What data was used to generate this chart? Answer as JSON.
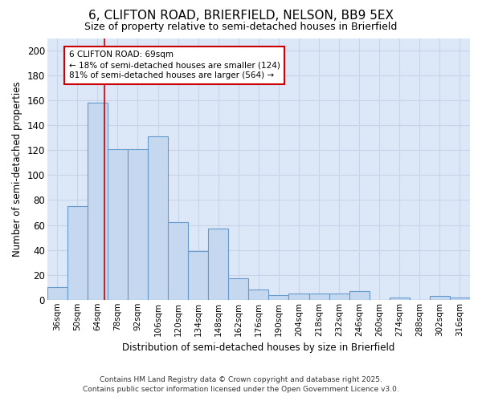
{
  "title1": "6, CLIFTON ROAD, BRIERFIELD, NELSON, BB9 5EX",
  "title2": "Size of property relative to semi-detached houses in Brierfield",
  "xlabel": "Distribution of semi-detached houses by size in Brierfield",
  "ylabel": "Number of semi-detached properties",
  "bin_labels": [
    "36sqm",
    "50sqm",
    "64sqm",
    "78sqm",
    "92sqm",
    "106sqm",
    "120sqm",
    "134sqm",
    "148sqm",
    "162sqm",
    "176sqm",
    "190sqm",
    "204sqm",
    "218sqm",
    "232sqm",
    "246sqm",
    "260sqm",
    "274sqm",
    "288sqm",
    "302sqm",
    "316sqm"
  ],
  "bin_edges": [
    29,
    43,
    57,
    71,
    85,
    99,
    113,
    127,
    141,
    155,
    169,
    183,
    197,
    211,
    225,
    239,
    253,
    267,
    281,
    295,
    309,
    323
  ],
  "counts": [
    10,
    75,
    158,
    121,
    121,
    131,
    62,
    39,
    57,
    17,
    8,
    4,
    5,
    5,
    5,
    7,
    0,
    2,
    0,
    3,
    2
  ],
  "bar_color": "#c5d8f0",
  "bar_edge_color": "#6699cc",
  "property_size": 69,
  "red_line_color": "#cc0000",
  "annotation_line1": "6 CLIFTON ROAD: 69sqm",
  "annotation_line2": "← 18% of semi-detached houses are smaller (124)",
  "annotation_line3": "81% of semi-detached houses are larger (564) →",
  "annotation_box_color": "#ffffff",
  "annotation_box_edge": "#cc0000",
  "ylim": [
    0,
    210
  ],
  "yticks": [
    0,
    20,
    40,
    60,
    80,
    100,
    120,
    140,
    160,
    180,
    200
  ],
  "grid_color": "#c8d4e8",
  "bg_color": "#dce8f8",
  "footer1": "Contains HM Land Registry data © Crown copyright and database right 2025.",
  "footer2": "Contains public sector information licensed under the Open Government Licence v3.0."
}
